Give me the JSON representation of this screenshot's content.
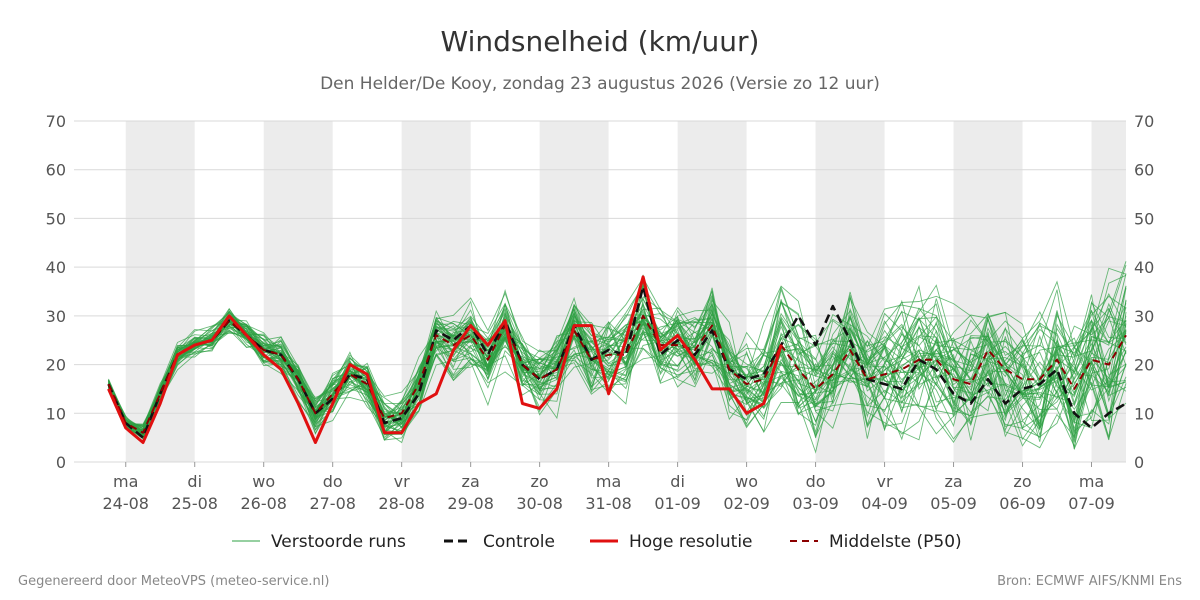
{
  "title": "Windsnelheid (km/uur)",
  "subtitle": "Den Helder/De Kooy, zondag 23 augustus 2026 (Versie zo 12 uur)",
  "footer_left": "Gegenereerd door MeteoVPS (meteo-service.nl)",
  "footer_right": "Bron: ECMWF AIFS/KNMI Ens",
  "colors": {
    "ensemble": "#2ea043",
    "control": "#111111",
    "high_res": "#e01010",
    "median": "#8b0000",
    "band": "#ececec",
    "grid": "#d9d9d9"
  },
  "legend": [
    {
      "key": "ensemble",
      "label": "Verstoorde runs"
    },
    {
      "key": "control",
      "label": "Controle"
    },
    {
      "key": "high_res",
      "label": "Hoge resolutie"
    },
    {
      "key": "median",
      "label": "Middelste (P50)"
    }
  ],
  "chart_data": {
    "type": "line",
    "ylim": [
      0,
      70
    ],
    "yticks": [
      0,
      10,
      20,
      30,
      40,
      50,
      60,
      70
    ],
    "grid": true,
    "legend_position": "bottom",
    "x_range_days": [
      -0.75,
      14.5
    ],
    "days": [
      {
        "day": "ma",
        "date": "24-08"
      },
      {
        "day": "di",
        "date": "25-08"
      },
      {
        "day": "wo",
        "date": "26-08"
      },
      {
        "day": "do",
        "date": "27-08"
      },
      {
        "day": "vr",
        "date": "28-08"
      },
      {
        "day": "za",
        "date": "29-08"
      },
      {
        "day": "zo",
        "date": "30-08"
      },
      {
        "day": "ma",
        "date": "31-08"
      },
      {
        "day": "di",
        "date": "01-09"
      },
      {
        "day": "wo",
        "date": "02-09"
      },
      {
        "day": "do",
        "date": "03-09"
      },
      {
        "day": "vr",
        "date": "04-09"
      },
      {
        "day": "za",
        "date": "05-09"
      },
      {
        "day": "zo",
        "date": "06-09"
      },
      {
        "day": "ma",
        "date": "07-09"
      }
    ],
    "shaded_day_indices": [
      0,
      2,
      4,
      6,
      8,
      10,
      12,
      14
    ],
    "time_step_days": 0.25,
    "start_day": -0.25,
    "series": [
      {
        "name": "Controle",
        "key": "control",
        "values": [
          16,
          8,
          5,
          14,
          22,
          24,
          25,
          29,
          26,
          23,
          22,
          17,
          10,
          13,
          18,
          17,
          8,
          9,
          14,
          27,
          25,
          28,
          22,
          29,
          20,
          17,
          19,
          28,
          21,
          23,
          22,
          36,
          22,
          25,
          22,
          27,
          19,
          17,
          18,
          24,
          30,
          24,
          32,
          25,
          17,
          16,
          15,
          21,
          19,
          14,
          12,
          17,
          12,
          15,
          16,
          19,
          10,
          7,
          10,
          12
        ]
      },
      {
        "name": "Hoge resolutie",
        "key": "high_res",
        "values": [
          15,
          7,
          4,
          12,
          22,
          24,
          25,
          30,
          26,
          22,
          19,
          12,
          4,
          12,
          20,
          18,
          6,
          6,
          12,
          14,
          23,
          28,
          24,
          29,
          12,
          11,
          15,
          28,
          28,
          14,
          25,
          38,
          23,
          26,
          21,
          15,
          15,
          10,
          12,
          24
        ]
      },
      {
        "name": "Middelste (P50)",
        "key": "median",
        "values": [
          16,
          8,
          6,
          14,
          22,
          24,
          25,
          29,
          26,
          23,
          22,
          17,
          10,
          14,
          18,
          16,
          9,
          10,
          16,
          26,
          24,
          26,
          21,
          28,
          20,
          17,
          19,
          27,
          21,
          22,
          22,
          30,
          24,
          24,
          23,
          28,
          19,
          16,
          17,
          24,
          19,
          15,
          18,
          23,
          17,
          18,
          19,
          21,
          21,
          17,
          16,
          23,
          19,
          17,
          17,
          21,
          15,
          21,
          20,
          26
        ]
      }
    ]
  }
}
